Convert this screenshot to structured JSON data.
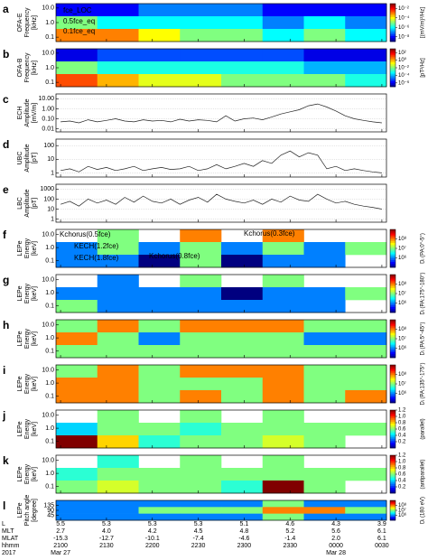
{
  "x_axis": {
    "xlim": [
      20.95,
      24.55
    ],
    "xticks": [
      {
        "value": 21,
        "label": "2100"
      },
      {
        "value": 21.5,
        "label": "2130"
      },
      {
        "value": 22,
        "label": "2200"
      },
      {
        "value": 22.5,
        "label": "2230"
      },
      {
        "value": 23,
        "label": "2300"
      },
      {
        "value": 23.5,
        "label": "2330"
      },
      {
        "value": 24,
        "label": "0000"
      },
      {
        "value": 24.5,
        "label": "0030"
      }
    ],
    "rows": [
      {
        "name": "L",
        "values": [
          "5.5",
          "5.3",
          "5.3",
          "5.3",
          "5.1",
          "4.6",
          "4.3",
          "3.9"
        ]
      },
      {
        "name": "MLT",
        "values": [
          "2.7",
          "4.0",
          "4.2",
          "4.5",
          "4.8",
          "5.2",
          "5.6",
          "6.1"
        ]
      },
      {
        "name": "MLAT",
        "values": [
          "-15.3",
          "-12.7",
          "-10.1",
          "-7.4",
          "-4.6",
          "-1.4",
          "2.0",
          "6.1"
        ]
      },
      {
        "name": "hhmm"
      },
      {
        "name": "2017",
        "values": [
          "Mar 27",
          null,
          null,
          null,
          null,
          null,
          "Mar 28",
          null
        ]
      }
    ]
  },
  "chart_data": [
    {
      "type": "heatmap",
      "label": "a",
      "ylabel": [
        "OFA-E",
        "Frequency",
        "[kHz]"
      ],
      "log": true,
      "ylim": [
        0.05,
        20
      ],
      "yticks": [
        {
          "value": 10,
          "label": "10.0"
        },
        {
          "value": 1,
          "label": "1.0"
        },
        0.1
      ],
      "clim": [
        1e-09,
        0.1
      ],
      "clog": true,
      "cticks": [
        {
          "value": 0.01,
          "label": "10⁻²"
        },
        {
          "value": 0.0001,
          "label": "10⁻⁴"
        },
        {
          "value": 1e-06,
          "label": "10⁻⁶"
        },
        {
          "value": 1e-08,
          "label": "10⁻⁸"
        }
      ],
      "clabel": "[(mV/m)²/Hz]",
      "annotations": [
        "fce_LOC",
        "0.5fce_eq",
        "0.1fce_eq"
      ],
      "z": [
        [
          1e-08,
          1e-08,
          1e-07,
          1e-07,
          1e-07,
          1e-08,
          1e-08,
          1e-08
        ],
        [
          1e-05,
          1e-06,
          1e-06,
          1e-06,
          1e-06,
          1e-07,
          1e-06,
          1e-07
        ],
        [
          0.001,
          0.001,
          0.0001,
          1e-05,
          1e-05,
          1e-06,
          1e-05,
          1e-06
        ]
      ]
    },
    {
      "type": "heatmap",
      "label": "b",
      "ylabel": [
        "OFA-B",
        "Frequency",
        "[kHz]"
      ],
      "log": true,
      "ylim": [
        0.05,
        20
      ],
      "yticks": [
        {
          "value": 10,
          "label": "10.0"
        },
        {
          "value": 1,
          "label": "1.0"
        },
        0.1
      ],
      "clim": [
        1e-07,
        1000.0
      ],
      "clog": true,
      "cticks": [
        {
          "value": 100,
          "label": "10²"
        },
        {
          "value": 1,
          "label": "10⁰"
        },
        {
          "value": 0.01,
          "label": "10⁻²"
        },
        {
          "value": 0.0001,
          "label": "10⁻⁴"
        },
        {
          "value": 1e-06,
          "label": "10⁻⁶"
        }
      ],
      "clabel": "[pT²/Hz]",
      "z": [
        [
          1e-06,
          1e-05,
          1e-05,
          1e-05,
          1e-05,
          1e-05,
          1e-06,
          1e-06
        ],
        [
          0.01,
          0.001,
          0.001,
          0.001,
          0.001,
          0.001,
          0.0001,
          0.0001
        ],
        [
          10,
          1,
          0.1,
          0.1,
          0.01,
          0.01,
          0.01,
          0.001
        ]
      ]
    },
    {
      "type": "line",
      "label": "c",
      "ylabel": [
        "ECH",
        "Amplitude",
        "[mV/m]"
      ],
      "log": true,
      "ylim": [
        0.005,
        30
      ],
      "yticks": [
        {
          "value": 10,
          "label": "10.00"
        },
        {
          "value": 1,
          "label": "1.00"
        },
        {
          "value": 0.1,
          "label": "0.10"
        },
        0.01
      ],
      "x": [
        21.0,
        21.1,
        21.2,
        21.3,
        21.4,
        21.5,
        21.6,
        21.7,
        21.8,
        21.9,
        22.0,
        22.1,
        22.2,
        22.3,
        22.4,
        22.5,
        22.6,
        22.7,
        22.8,
        22.9,
        23.0,
        23.1,
        23.2,
        23.3,
        23.4,
        23.5,
        23.6,
        23.7,
        23.8,
        23.9,
        24.0,
        24.1,
        24.2,
        24.3,
        24.4,
        24.5
      ],
      "values": [
        0.05,
        0.06,
        0.04,
        0.08,
        0.05,
        0.07,
        0.1,
        0.06,
        0.05,
        0.08,
        0.06,
        0.07,
        0.05,
        0.09,
        0.06,
        0.08,
        0.07,
        0.05,
        0.2,
        0.06,
        0.1,
        0.12,
        0.08,
        0.15,
        0.3,
        0.5,
        0.8,
        2,
        3,
        1.5,
        0.6,
        0.2,
        0.1,
        0.07,
        0.05,
        0.04
      ]
    },
    {
      "type": "line",
      "label": "d",
      "ylabel": [
        "UBC",
        "Amplitude",
        "[pT]"
      ],
      "log": true,
      "ylim": [
        0.5,
        300
      ],
      "yticks": [
        100,
        10,
        1
      ],
      "x": [
        21.0,
        21.1,
        21.2,
        21.3,
        21.4,
        21.5,
        21.6,
        21.7,
        21.8,
        21.9,
        22.0,
        22.1,
        22.2,
        22.3,
        22.4,
        22.5,
        22.6,
        22.7,
        22.8,
        22.9,
        23.0,
        23.1,
        23.2,
        23.3,
        23.4,
        23.5,
        23.6,
        23.7,
        23.8,
        23.9,
        24.0,
        24.1,
        24.2,
        24.3,
        24.4,
        24.5
      ],
      "values": [
        1.5,
        2,
        1.2,
        3,
        1.8,
        2.5,
        1.5,
        2,
        3,
        1.5,
        2,
        2.5,
        1.8,
        2,
        3,
        1.5,
        2,
        4,
        2,
        3,
        5,
        3,
        8,
        5,
        20,
        40,
        15,
        30,
        20,
        2,
        3,
        1.5,
        2,
        1.5,
        1.2,
        1
      ]
    },
    {
      "type": "line",
      "label": "e",
      "ylabel": [
        "LBC",
        "Amplitude",
        "[pT]"
      ],
      "log": true,
      "ylim": [
        0.5,
        3000
      ],
      "yticks": [
        1000,
        100,
        10,
        1
      ],
      "x": [
        21.0,
        21.1,
        21.2,
        21.3,
        21.4,
        21.5,
        21.6,
        21.7,
        21.8,
        21.9,
        22.0,
        22.1,
        22.2,
        22.3,
        22.4,
        22.5,
        22.6,
        22.7,
        22.8,
        22.9,
        23.0,
        23.1,
        23.2,
        23.3,
        23.4,
        23.5,
        23.6,
        23.7,
        23.8,
        23.9,
        24.0,
        24.1,
        24.2,
        24.3,
        24.4,
        24.5
      ],
      "values": [
        30,
        60,
        20,
        100,
        40,
        80,
        30,
        150,
        50,
        200,
        60,
        40,
        100,
        30,
        80,
        150,
        50,
        300,
        100,
        60,
        40,
        80,
        30,
        100,
        50,
        200,
        80,
        60,
        300,
        100,
        40,
        60,
        30,
        20,
        15,
        10
      ]
    },
    {
      "type": "heatmap",
      "label": "f",
      "ylabel": [
        "LEPe",
        "Energy",
        "[keV]"
      ],
      "log": true,
      "ylim": [
        0.03,
        25
      ],
      "yticks": [
        {
          "value": 10,
          "label": "10.0"
        },
        {
          "value": 1,
          "label": "1.0"
        },
        0.1
      ],
      "clim": [
        100000.0,
        1000000000.0
      ],
      "clog": true,
      "cticks": [
        {
          "value": 100000000.0,
          "label": "10⁸"
        },
        {
          "value": 10000000.0,
          "label": "10⁷"
        },
        {
          "value": 1000000.0,
          "label": "10⁶"
        }
      ],
      "clabel": "Dᵢ (PA:0°-5°)",
      "annotations": [
        "Kchorus(0.5fce)",
        "Kchorus(0.3fce)",
        "KECH(1.2fce)",
        "Kchorus(0.8fce)",
        "KECH(1.8fce)"
      ],
      "z": [
        [
          null,
          10000000.0,
          null,
          100000000.0,
          null,
          100000000.0,
          null,
          null
        ],
        [
          1000000.0,
          10000000.0,
          1000000.0,
          10000000.0,
          1000000.0,
          10000000.0,
          1000000.0,
          10000000.0
        ],
        [
          1000000.0,
          1000000.0,
          100000.0,
          10000000.0,
          100000.0,
          1000000.0,
          1000000.0,
          null
        ]
      ]
    },
    {
      "type": "heatmap",
      "label": "g",
      "ylabel": [
        "LEPe",
        "Energy",
        "[keV]"
      ],
      "log": true,
      "ylim": [
        0.03,
        25
      ],
      "yticks": [
        {
          "value": 10,
          "label": "10.0"
        },
        {
          "value": 1,
          "label": "1.0"
        },
        0.1
      ],
      "clim": [
        100000.0,
        1000000000.0
      ],
      "clog": true,
      "cticks": [
        {
          "value": 100000000.0,
          "label": "10⁸"
        },
        {
          "value": 10000000.0,
          "label": "10⁷"
        },
        {
          "value": 1000000.0,
          "label": "10⁶"
        }
      ],
      "clabel": "Dᵢ (PA:175°-180°)",
      "z": [
        [
          null,
          1000000.0,
          null,
          10000000.0,
          null,
          10000000.0,
          null,
          null
        ],
        [
          1000000.0,
          1000000.0,
          1000000.0,
          1000000.0,
          100000.0,
          1000000.0,
          1000000.0,
          10000000.0
        ],
        [
          10000000.0,
          1000000.0,
          1000000.0,
          1000000.0,
          1000000.0,
          1000000.0,
          1000000.0,
          null
        ]
      ]
    },
    {
      "type": "heatmap",
      "label": "h",
      "ylabel": [
        "LEPe",
        "Energy",
        "[keV]"
      ],
      "log": true,
      "ylim": [
        0.03,
        25
      ],
      "yticks": [
        {
          "value": 10,
          "label": "10.0"
        },
        {
          "value": 1,
          "label": "1.0"
        },
        0.1
      ],
      "clim": [
        100000.0,
        1000000000.0
      ],
      "clog": true,
      "cticks": [
        {
          "value": 100000000.0,
          "label": "10⁸"
        },
        {
          "value": 10000000.0,
          "label": "10⁷"
        },
        {
          "value": 1000000.0,
          "label": "10⁶"
        }
      ],
      "clabel": "Dᵢ (PA:5°-45°)",
      "z": [
        [
          10000000.0,
          100000000.0,
          10000000.0,
          100000000.0,
          100000000.0,
          100000000.0,
          10000000.0,
          10000000.0
        ],
        [
          100000000.0,
          10000000.0,
          1000000.0,
          10000000.0,
          10000000.0,
          10000000.0,
          1000000.0,
          1000000.0
        ],
        [
          10000000.0,
          10000000.0,
          10000000.0,
          10000000.0,
          10000000.0,
          10000000.0,
          10000000.0,
          10000000.0
        ]
      ]
    },
    {
      "type": "heatmap",
      "label": "i",
      "ylabel": [
        "LEPe",
        "Energy",
        "[keV]"
      ],
      "log": true,
      "ylim": [
        0.03,
        25
      ],
      "yticks": [
        {
          "value": 10,
          "label": "10.0"
        },
        {
          "value": 1,
          "label": "1.0"
        },
        0.1
      ],
      "clim": [
        100000.0,
        1000000000.0
      ],
      "clog": true,
      "cticks": [
        {
          "value": 100000000.0,
          "label": "10⁸"
        },
        {
          "value": 10000000.0,
          "label": "10⁷"
        },
        {
          "value": 1000000.0,
          "label": "10⁶"
        }
      ],
      "clabel": "Dᵢ (PA:135°-175°)",
      "z": [
        [
          10000000.0,
          100000000.0,
          10000000.0,
          100000000.0,
          100000000.0,
          100000000.0,
          10000000.0,
          10000000.0
        ],
        [
          100000000.0,
          100000000.0,
          10000000.0,
          10000000.0,
          10000000.0,
          100000000.0,
          10000000.0,
          10000000.0
        ],
        [
          100000000.0,
          100000000.0,
          10000000.0,
          100000000.0,
          10000000.0,
          100000000.0,
          10000000.0,
          100000000.0
        ]
      ]
    },
    {
      "type": "heatmap",
      "label": "j",
      "ylabel": [
        "LEPe",
        "Energy",
        "[keV]"
      ],
      "log": true,
      "ylim": [
        0.03,
        25
      ],
      "yticks": [
        {
          "value": 10,
          "label": "10.0"
        },
        {
          "value": 1,
          "label": "1.0"
        },
        0.1
      ],
      "clim": [
        0,
        1.2
      ],
      "clog": false,
      "cticks": [
        1.2,
        {
          "value": 1,
          "label": "1.0"
        },
        0.8,
        0.6,
        0.4,
        0.2
      ],
      "clabel": "(parallel)",
      "z": [
        [
          null,
          0.6,
          null,
          0.6,
          null,
          0.6,
          null,
          null
        ],
        [
          0.4,
          0.6,
          0.6,
          0.5,
          0.6,
          0.6,
          0.6,
          0.6
        ],
        [
          1.2,
          0.8,
          0.5,
          0.6,
          0.6,
          0.7,
          0.6,
          null
        ]
      ]
    },
    {
      "type": "heatmap",
      "label": "k",
      "ylabel": [
        "LEPe",
        "Energy",
        "[keV]"
      ],
      "log": true,
      "ylim": [
        0.03,
        25
      ],
      "yticks": [
        {
          "value": 10,
          "label": "10.0"
        },
        {
          "value": 1,
          "label": "1.0"
        },
        0.1
      ],
      "clim": [
        0,
        1.2
      ],
      "clog": false,
      "cticks": [
        1.2,
        {
          "value": 1,
          "label": "1.0"
        },
        0.8,
        0.6,
        0.4,
        0.2
      ],
      "clabel": "(antiparallel)",
      "z": [
        [
          null,
          0.5,
          null,
          0.6,
          null,
          0.6,
          null,
          null
        ],
        [
          0.5,
          0.6,
          0.6,
          0.6,
          0.6,
          0.6,
          0.6,
          0.6
        ],
        [
          0.6,
          0.7,
          0.6,
          0.6,
          0.5,
          1.2,
          0.6,
          null
        ]
      ]
    },
    {
      "type": "heatmap",
      "label": "l",
      "ylabel": [
        "LEPe",
        "Pitch angle",
        "[degree]"
      ],
      "log": false,
      "ylim": [
        0,
        180
      ],
      "yticks": [
        135,
        90,
        45
      ],
      "clim": [
        100000.0,
        1000000000.0
      ],
      "clog": true,
      "cticks": [
        {
          "value": 100000000.0,
          "label": "10⁸"
        },
        {
          "value": 10000000.0,
          "label": "10⁷"
        },
        {
          "value": 1000000.0,
          "label": "10⁶"
        }
      ],
      "clabel": "Dᵢ (180 eV)",
      "z": [
        [
          1000000.0,
          1000000.0,
          1000000.0,
          1000000.0,
          1000000.0,
          10000000.0,
          1000000.0,
          1000000.0
        ],
        [
          1000000.0,
          1000000.0,
          10000000.0,
          10000000.0,
          10000000.0,
          100000000.0,
          100000000.0,
          10000000.0
        ],
        [
          1000000.0,
          1000000.0,
          1000000.0,
          1000000.0,
          1000000.0,
          10000000.0,
          1000000.0,
          1000000.0
        ]
      ]
    }
  ]
}
